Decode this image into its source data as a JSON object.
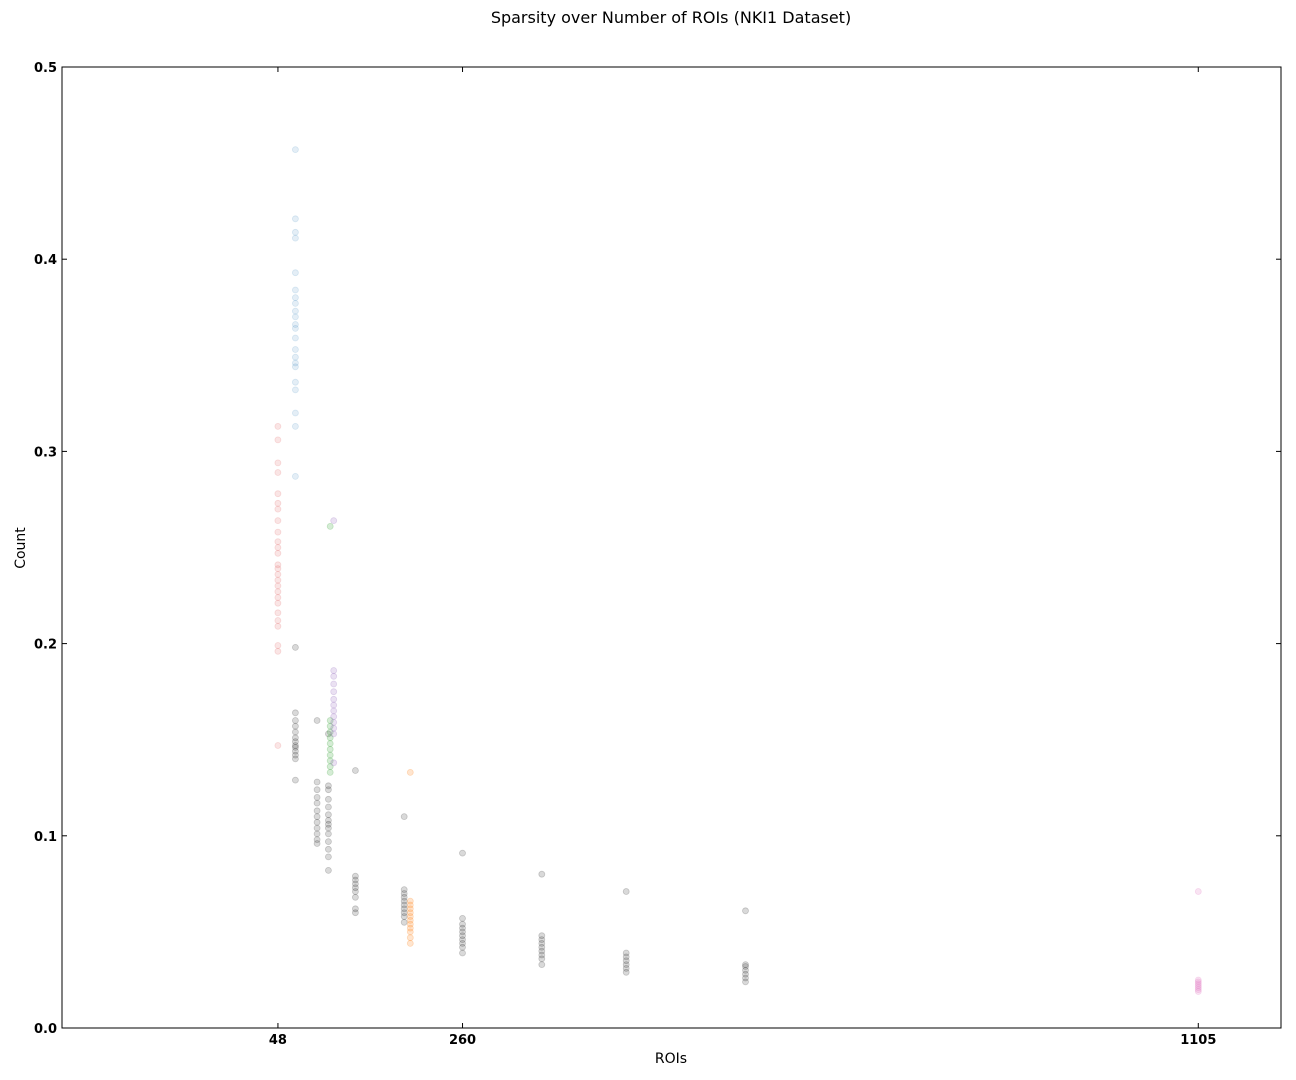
{
  "chart_data": {
    "type": "scatter",
    "title": "Sparsity over Number of ROIs (NKI1 Dataset)",
    "xlabel": "ROIs",
    "ylabel": "Count",
    "xlim": [
      -200,
      1200
    ],
    "ylim": [
      0.0,
      0.5
    ],
    "xticks": [
      48,
      260,
      1105
    ],
    "yticks": [
      "0.0",
      "0.1",
      "0.2",
      "0.3",
      "0.4",
      "0.5"
    ],
    "grid": false,
    "series": [
      {
        "color": "#d62728",
        "opacity": 0.12,
        "points": [
          [
            48,
            0.147
          ],
          [
            48,
            0.196
          ],
          [
            48,
            0.199
          ],
          [
            48,
            0.209
          ],
          [
            48,
            0.212
          ],
          [
            48,
            0.216
          ],
          [
            48,
            0.221
          ],
          [
            48,
            0.224
          ],
          [
            48,
            0.227
          ],
          [
            48,
            0.23
          ],
          [
            48,
            0.233
          ],
          [
            48,
            0.236
          ],
          [
            48,
            0.239
          ],
          [
            48,
            0.241
          ],
          [
            48,
            0.247
          ],
          [
            48,
            0.25
          ],
          [
            48,
            0.253
          ],
          [
            48,
            0.258
          ],
          [
            48,
            0.264
          ],
          [
            48,
            0.27
          ],
          [
            48,
            0.273
          ],
          [
            48,
            0.278
          ],
          [
            48,
            0.289
          ],
          [
            48,
            0.294
          ],
          [
            48,
            0.306
          ],
          [
            48,
            0.313
          ]
        ]
      },
      {
        "color": "#1f77b4",
        "opacity": 0.12,
        "points": [
          [
            68,
            0.287
          ],
          [
            68,
            0.313
          ],
          [
            68,
            0.32
          ],
          [
            68,
            0.332
          ],
          [
            68,
            0.336
          ],
          [
            68,
            0.344
          ],
          [
            68,
            0.346
          ],
          [
            68,
            0.349
          ],
          [
            68,
            0.353
          ],
          [
            68,
            0.359
          ],
          [
            68,
            0.364
          ],
          [
            68,
            0.366
          ],
          [
            68,
            0.37
          ],
          [
            68,
            0.373
          ],
          [
            68,
            0.377
          ],
          [
            68,
            0.38
          ],
          [
            68,
            0.384
          ],
          [
            68,
            0.393
          ],
          [
            68,
            0.411
          ],
          [
            68,
            0.414
          ],
          [
            68,
            0.421
          ],
          [
            68,
            0.457
          ]
        ]
      },
      {
        "color": "#000000",
        "opacity": 0.15,
        "points": [
          [
            68,
            0.129
          ],
          [
            68,
            0.14
          ],
          [
            68,
            0.142
          ],
          [
            68,
            0.144
          ],
          [
            68,
            0.146
          ],
          [
            68,
            0.147
          ],
          [
            68,
            0.149
          ],
          [
            68,
            0.151
          ],
          [
            68,
            0.154
          ],
          [
            68,
            0.157
          ],
          [
            68,
            0.16
          ],
          [
            68,
            0.164
          ],
          [
            68,
            0.198
          ],
          [
            93,
            0.096
          ],
          [
            93,
            0.098
          ],
          [
            93,
            0.101
          ],
          [
            93,
            0.104
          ],
          [
            93,
            0.107
          ],
          [
            93,
            0.11
          ],
          [
            93,
            0.113
          ],
          [
            93,
            0.117
          ],
          [
            93,
            0.12
          ],
          [
            93,
            0.124
          ],
          [
            93,
            0.128
          ],
          [
            93,
            0.16
          ],
          [
            106,
            0.082
          ],
          [
            106,
            0.089
          ],
          [
            106,
            0.093
          ],
          [
            106,
            0.097
          ],
          [
            106,
            0.101
          ],
          [
            106,
            0.104
          ],
          [
            106,
            0.106
          ],
          [
            106,
            0.108
          ],
          [
            106,
            0.111
          ],
          [
            106,
            0.115
          ],
          [
            106,
            0.119
          ],
          [
            106,
            0.124
          ],
          [
            106,
            0.126
          ],
          [
            106,
            0.153
          ],
          [
            137,
            0.06
          ],
          [
            137,
            0.062
          ],
          [
            137,
            0.068
          ],
          [
            137,
            0.071
          ],
          [
            137,
            0.073
          ],
          [
            137,
            0.075
          ],
          [
            137,
            0.077
          ],
          [
            137,
            0.079
          ],
          [
            137,
            0.134
          ],
          [
            193,
            0.055
          ],
          [
            193,
            0.058
          ],
          [
            193,
            0.06
          ],
          [
            193,
            0.062
          ],
          [
            193,
            0.064
          ],
          [
            193,
            0.066
          ],
          [
            193,
            0.068
          ],
          [
            193,
            0.07
          ],
          [
            193,
            0.072
          ],
          [
            193,
            0.11
          ],
          [
            260,
            0.039
          ],
          [
            260,
            0.042
          ],
          [
            260,
            0.044
          ],
          [
            260,
            0.046
          ],
          [
            260,
            0.048
          ],
          [
            260,
            0.05
          ],
          [
            260,
            0.052
          ],
          [
            260,
            0.054
          ],
          [
            260,
            0.057
          ],
          [
            260,
            0.091
          ],
          [
            351,
            0.033
          ],
          [
            351,
            0.036
          ],
          [
            351,
            0.038
          ],
          [
            351,
            0.04
          ],
          [
            351,
            0.042
          ],
          [
            351,
            0.044
          ],
          [
            351,
            0.046
          ],
          [
            351,
            0.048
          ],
          [
            351,
            0.08
          ],
          [
            448,
            0.029
          ],
          [
            448,
            0.031
          ],
          [
            448,
            0.033
          ],
          [
            448,
            0.035
          ],
          [
            448,
            0.037
          ],
          [
            448,
            0.039
          ],
          [
            448,
            0.071
          ],
          [
            585,
            0.024
          ],
          [
            585,
            0.026
          ],
          [
            585,
            0.028
          ],
          [
            585,
            0.03
          ],
          [
            585,
            0.032
          ],
          [
            585,
            0.033
          ],
          [
            585,
            0.061
          ]
        ]
      },
      {
        "color": "#2ca02c",
        "opacity": 0.2,
        "points": [
          [
            108,
            0.133
          ],
          [
            108,
            0.136
          ],
          [
            108,
            0.139
          ],
          [
            108,
            0.142
          ],
          [
            108,
            0.145
          ],
          [
            108,
            0.148
          ],
          [
            108,
            0.151
          ],
          [
            108,
            0.154
          ],
          [
            108,
            0.157
          ],
          [
            108,
            0.16
          ],
          [
            108,
            0.261
          ]
        ]
      },
      {
        "color": "#9467bd",
        "opacity": 0.2,
        "points": [
          [
            112,
            0.138
          ],
          [
            112,
            0.153
          ],
          [
            112,
            0.156
          ],
          [
            112,
            0.159
          ],
          [
            112,
            0.162
          ],
          [
            112,
            0.165
          ],
          [
            112,
            0.168
          ],
          [
            112,
            0.171
          ],
          [
            112,
            0.175
          ],
          [
            112,
            0.179
          ],
          [
            112,
            0.183
          ],
          [
            112,
            0.186
          ],
          [
            112,
            0.264
          ]
        ]
      },
      {
        "color": "#ff7f0e",
        "opacity": 0.2,
        "points": [
          [
            200,
            0.044
          ],
          [
            200,
            0.047
          ],
          [
            200,
            0.05
          ],
          [
            200,
            0.052
          ],
          [
            200,
            0.054
          ],
          [
            200,
            0.056
          ],
          [
            200,
            0.058
          ],
          [
            200,
            0.06
          ],
          [
            200,
            0.062
          ],
          [
            200,
            0.064
          ],
          [
            200,
            0.066
          ],
          [
            200,
            0.133
          ]
        ]
      },
      {
        "color": "#e377c2",
        "opacity": 0.2,
        "points": [
          [
            1105,
            0.019
          ],
          [
            1105,
            0.02
          ],
          [
            1105,
            0.021
          ],
          [
            1105,
            0.022
          ],
          [
            1105,
            0.023
          ],
          [
            1105,
            0.024
          ],
          [
            1105,
            0.025
          ],
          [
            1105,
            0.071
          ]
        ]
      }
    ]
  }
}
